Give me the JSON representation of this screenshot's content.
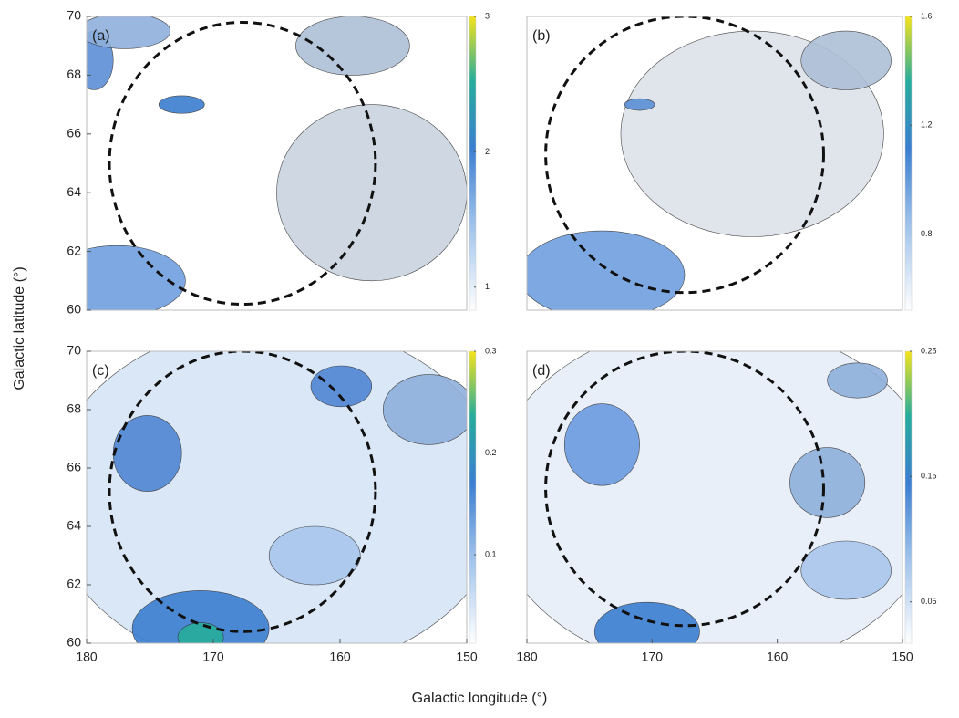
{
  "axis_labels": {
    "x": "Galactic longitude (°)",
    "y": "Galactic latitude (°)"
  },
  "chart_data": [
    {
      "type": "contour",
      "label": "(a)",
      "xlim": [
        180,
        150
      ],
      "ylim": [
        60,
        70
      ],
      "yticks": [
        60,
        62,
        64,
        66,
        68,
        70
      ],
      "clim": [
        0.83,
        3
      ],
      "cticks": [
        1,
        2,
        3
      ]
    },
    {
      "type": "contour",
      "label": "(b)",
      "xlim": [
        180,
        150
      ],
      "ylim": [
        60,
        70
      ],
      "clim": [
        0.52,
        1.6
      ],
      "cticks": [
        0.8,
        1.2,
        1.6
      ]
    },
    {
      "type": "contour",
      "label": "(c)",
      "xlim": [
        180,
        150
      ],
      "ylim": [
        60,
        70
      ],
      "xticks": [
        180,
        170,
        160,
        150
      ],
      "yticks": [
        60,
        62,
        64,
        66,
        68,
        70
      ],
      "clim": [
        0.013,
        0.3
      ],
      "cticks": [
        0.1,
        0.2,
        0.3
      ]
    },
    {
      "type": "contour",
      "label": "(d)",
      "xlim": [
        180,
        150
      ],
      "ylim": [
        60,
        70
      ],
      "xticks": [
        180,
        170,
        160,
        150
      ],
      "clim": [
        0.017,
        0.25
      ],
      "cticks": [
        0.05,
        0.15,
        0.25
      ]
    }
  ]
}
